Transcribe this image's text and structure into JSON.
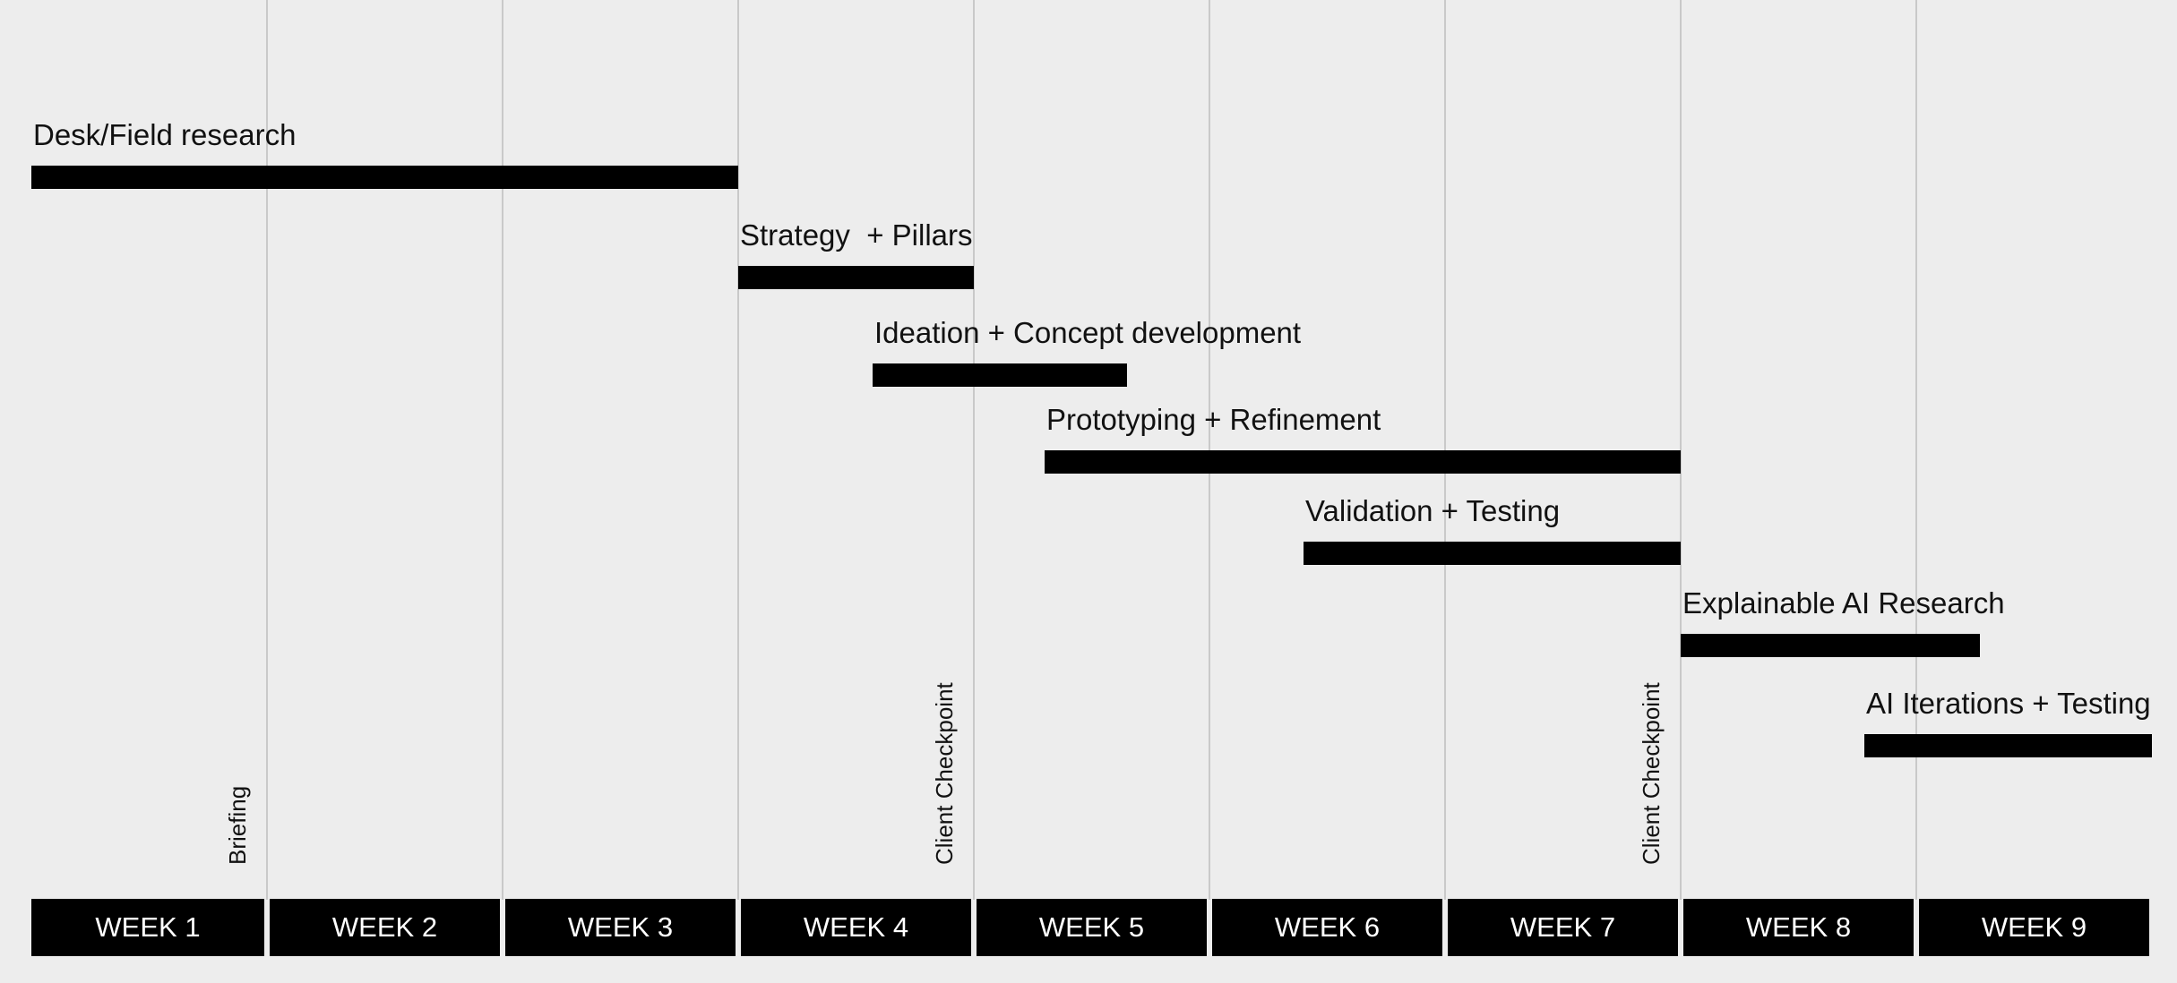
{
  "chart_data": {
    "type": "gantt",
    "weeks": [
      "WEEK 1",
      "WEEK 2",
      "WEEK 3",
      "WEEK 4",
      "WEEK 5",
      "WEEK 6",
      "WEEK 7",
      "WEEK 8",
      "WEEK 9"
    ],
    "tasks": [
      {
        "name": "Desk/Field research",
        "start": 0.0,
        "end": 3.0
      },
      {
        "name": "Strategy  + Pillars",
        "start": 3.0,
        "end": 4.0
      },
      {
        "name": "Ideation + Concept development",
        "start": 3.57,
        "end": 4.65
      },
      {
        "name": "Prototyping + Refinement",
        "start": 4.3,
        "end": 7.0
      },
      {
        "name": "Validation + Testing",
        "start": 5.4,
        "end": 7.0
      },
      {
        "name": "Explainable AI Research",
        "start": 7.0,
        "end": 8.27
      },
      {
        "name": "AI Iterations + Testing",
        "start": 7.78,
        "end": 9.0
      }
    ],
    "milestones": [
      {
        "label": "Briefing",
        "at": 1.0
      },
      {
        "label": "Client Checkpoint",
        "at": 4.0
      },
      {
        "label": "Client Checkpoint",
        "at": 7.0
      }
    ]
  },
  "colors": {
    "background": "#ededed",
    "bar": "#000000",
    "gridline": "#c9c9c9",
    "week_text": "#ffffff"
  }
}
